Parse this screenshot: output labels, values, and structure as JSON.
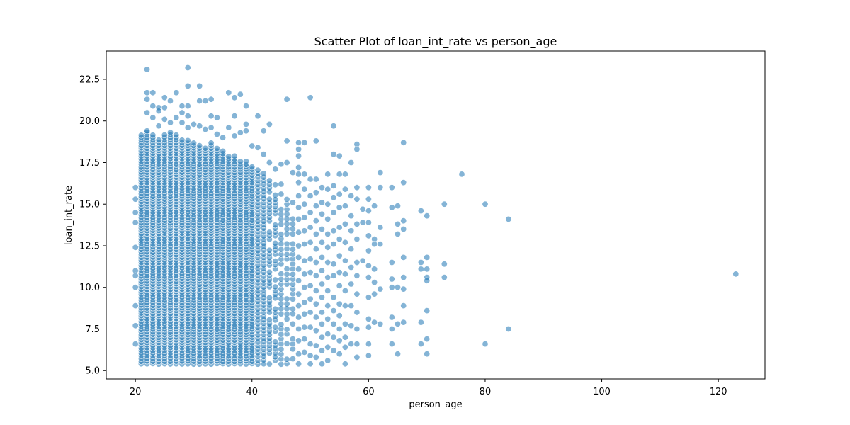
{
  "chart_data": {
    "type": "scatter",
    "title": "Scatter Plot of loan_int_rate vs person_age",
    "xlabel": "person_age",
    "ylabel": "loan_int_rate",
    "xlim": [
      15,
      128
    ],
    "ylim": [
      4.5,
      24.2
    ],
    "x_ticks": [
      20,
      40,
      60,
      80,
      100,
      120
    ],
    "x_tick_labels": [
      "20",
      "40",
      "60",
      "80",
      "100",
      "120"
    ],
    "y_ticks": [
      5.0,
      7.5,
      10.0,
      12.5,
      15.0,
      17.5,
      20.0,
      22.5
    ],
    "y_tick_labels": [
      "5.0",
      "7.5",
      "10.0",
      "12.5",
      "15.0",
      "17.5",
      "20.0",
      "22.5"
    ],
    "grid": false,
    "legend": "none",
    "marker_color": "#1f77b4",
    "marker_edge_color": "#ffffff",
    "marker_alpha": 0.55,
    "series": [
      {
        "values": [
          [
            20,
            16.0
          ],
          [
            20,
            15.3
          ],
          [
            20,
            14.5
          ],
          [
            20,
            13.9
          ],
          [
            20,
            12.4
          ],
          [
            20,
            11.0
          ],
          [
            20,
            10.7
          ],
          [
            20,
            10.0
          ],
          [
            20,
            8.9
          ],
          [
            20,
            7.7
          ],
          [
            20,
            6.6
          ],
          [
            22,
            23.1
          ],
          [
            22,
            21.7
          ],
          [
            22,
            21.3
          ],
          [
            22,
            20.5
          ],
          [
            22,
            19.4
          ],
          [
            23,
            21.7
          ],
          [
            23,
            20.9
          ],
          [
            23,
            20.2
          ],
          [
            24,
            20.8
          ],
          [
            24,
            20.6
          ],
          [
            24,
            19.7
          ],
          [
            25,
            21.4
          ],
          [
            25,
            20.8
          ],
          [
            25,
            20.1
          ],
          [
            26,
            21.2
          ],
          [
            26,
            19.9
          ],
          [
            27,
            21.7
          ],
          [
            27,
            20.2
          ],
          [
            28,
            20.9
          ],
          [
            28,
            20.5
          ],
          [
            28,
            19.9
          ],
          [
            29,
            23.2
          ],
          [
            29,
            22.1
          ],
          [
            29,
            20.9
          ],
          [
            29,
            20.3
          ],
          [
            29,
            19.6
          ],
          [
            30,
            19.8
          ],
          [
            31,
            22.1
          ],
          [
            31,
            21.2
          ],
          [
            31,
            19.7
          ],
          [
            32,
            21.2
          ],
          [
            32,
            19.5
          ],
          [
            33,
            21.3
          ],
          [
            33,
            20.3
          ],
          [
            33,
            19.6
          ],
          [
            34,
            20.2
          ],
          [
            34,
            19.2
          ],
          [
            35,
            19.0
          ],
          [
            36,
            21.7
          ],
          [
            36,
            19.6
          ],
          [
            37,
            21.4
          ],
          [
            37,
            20.3
          ],
          [
            37,
            19.1
          ],
          [
            38,
            21.6
          ],
          [
            38,
            19.3
          ],
          [
            39,
            20.9
          ],
          [
            39,
            19.8
          ],
          [
            39,
            19.4
          ],
          [
            40,
            18.5
          ],
          [
            41,
            20.3
          ],
          [
            41,
            18.4
          ],
          [
            42,
            19.4
          ],
          [
            42,
            18.0
          ],
          [
            43,
            19.8
          ],
          [
            43,
            17.5
          ],
          [
            44,
            17.1
          ],
          [
            45,
            17.4
          ],
          [
            45,
            16.2
          ],
          [
            46,
            21.3
          ],
          [
            46,
            18.8
          ],
          [
            46,
            17.5
          ],
          [
            47,
            16.9
          ],
          [
            47,
            15.1
          ],
          [
            48,
            18.7
          ],
          [
            48,
            18.3
          ],
          [
            48,
            17.9
          ],
          [
            48,
            17.2
          ],
          [
            48,
            16.8
          ],
          [
            48,
            16.3
          ],
          [
            48,
            15.5
          ],
          [
            48,
            14.8
          ],
          [
            48,
            14.1
          ],
          [
            48,
            13.3
          ],
          [
            48,
            12.5
          ],
          [
            48,
            11.8
          ],
          [
            48,
            11.1
          ],
          [
            48,
            10.4
          ],
          [
            48,
            9.6
          ],
          [
            48,
            8.9
          ],
          [
            48,
            8.2
          ],
          [
            48,
            7.5
          ],
          [
            48,
            6.8
          ],
          [
            48,
            6.0
          ],
          [
            48,
            5.4
          ],
          [
            49,
            18.7
          ],
          [
            49,
            16.8
          ],
          [
            49,
            15.9
          ],
          [
            49,
            15.0
          ],
          [
            49,
            14.2
          ],
          [
            49,
            13.4
          ],
          [
            49,
            12.6
          ],
          [
            49,
            11.6
          ],
          [
            49,
            10.8
          ],
          [
            49,
            10.0
          ],
          [
            49,
            9.1
          ],
          [
            49,
            8.4
          ],
          [
            49,
            7.6
          ],
          [
            49,
            6.9
          ],
          [
            49,
            6.1
          ],
          [
            50,
            21.4
          ],
          [
            50,
            16.5
          ],
          [
            50,
            15.5
          ],
          [
            50,
            14.5
          ],
          [
            50,
            13.6
          ],
          [
            50,
            12.7
          ],
          [
            50,
            11.7
          ],
          [
            50,
            10.9
          ],
          [
            50,
            10.1
          ],
          [
            50,
            9.3
          ],
          [
            50,
            8.5
          ],
          [
            50,
            7.6
          ],
          [
            50,
            6.6
          ],
          [
            50,
            5.9
          ],
          [
            50,
            5.4
          ],
          [
            51,
            18.8
          ],
          [
            51,
            16.5
          ],
          [
            51,
            15.7
          ],
          [
            51,
            14.9
          ],
          [
            51,
            14.0
          ],
          [
            51,
            13.2
          ],
          [
            51,
            12.3
          ],
          [
            51,
            11.5
          ],
          [
            51,
            10.7
          ],
          [
            51,
            9.8
          ],
          [
            51,
            9.0
          ],
          [
            51,
            8.2
          ],
          [
            51,
            7.4
          ],
          [
            51,
            6.5
          ],
          [
            51,
            5.8
          ],
          [
            52,
            16.0
          ],
          [
            52,
            15.1
          ],
          [
            52,
            14.4
          ],
          [
            52,
            13.5
          ],
          [
            52,
            12.7
          ],
          [
            52,
            11.8
          ],
          [
            52,
            11.0
          ],
          [
            52,
            10.2
          ],
          [
            52,
            9.4
          ],
          [
            52,
            8.5
          ],
          [
            52,
            7.8
          ],
          [
            52,
            7.0
          ],
          [
            52,
            6.2
          ],
          [
            52,
            5.4
          ],
          [
            53,
            16.8
          ],
          [
            53,
            15.9
          ],
          [
            53,
            15.0
          ],
          [
            53,
            14.1
          ],
          [
            53,
            13.2
          ],
          [
            53,
            12.4
          ],
          [
            53,
            11.5
          ],
          [
            53,
            10.6
          ],
          [
            53,
            9.8
          ],
          [
            53,
            8.9
          ],
          [
            53,
            8.1
          ],
          [
            53,
            7.2
          ],
          [
            53,
            6.4
          ],
          [
            53,
            5.6
          ],
          [
            54,
            19.7
          ],
          [
            54,
            18.0
          ],
          [
            54,
            16.1
          ],
          [
            54,
            15.4
          ],
          [
            54,
            14.5
          ],
          [
            54,
            13.4
          ],
          [
            54,
            12.6
          ],
          [
            54,
            11.4
          ],
          [
            54,
            10.7
          ],
          [
            54,
            9.4
          ],
          [
            54,
            8.6
          ],
          [
            54,
            7.8
          ],
          [
            54,
            7.0
          ],
          [
            54,
            6.2
          ],
          [
            55,
            17.9
          ],
          [
            55,
            16.8
          ],
          [
            55,
            15.6
          ],
          [
            55,
            14.8
          ],
          [
            55,
            13.6
          ],
          [
            55,
            12.9
          ],
          [
            55,
            11.9
          ],
          [
            55,
            10.9
          ],
          [
            55,
            10.1
          ],
          [
            55,
            9.0
          ],
          [
            55,
            8.3
          ],
          [
            55,
            7.5
          ],
          [
            55,
            6.8
          ],
          [
            55,
            6.0
          ],
          [
            56,
            16.8
          ],
          [
            56,
            15.9
          ],
          [
            56,
            14.9
          ],
          [
            56,
            13.8
          ],
          [
            56,
            12.7
          ],
          [
            56,
            11.6
          ],
          [
            56,
            10.8
          ],
          [
            56,
            9.8
          ],
          [
            56,
            8.9
          ],
          [
            56,
            7.8
          ],
          [
            56,
            7.0
          ],
          [
            56,
            6.4
          ],
          [
            56,
            5.4
          ],
          [
            57,
            17.5
          ],
          [
            57,
            15.5
          ],
          [
            57,
            14.3
          ],
          [
            57,
            13.4
          ],
          [
            57,
            12.3
          ],
          [
            57,
            11.2
          ],
          [
            57,
            10.2
          ],
          [
            57,
            8.9
          ],
          [
            57,
            7.7
          ],
          [
            57,
            6.6
          ],
          [
            58,
            18.6
          ],
          [
            58,
            18.3
          ],
          [
            58,
            16.0
          ],
          [
            58,
            15.3
          ],
          [
            58,
            13.8
          ],
          [
            58,
            12.9
          ],
          [
            58,
            11.5
          ],
          [
            58,
            10.7
          ],
          [
            58,
            9.6
          ],
          [
            58,
            8.5
          ],
          [
            58,
            7.5
          ],
          [
            58,
            6.6
          ],
          [
            58,
            5.8
          ],
          [
            59,
            14.7
          ],
          [
            59,
            13.9
          ],
          [
            59,
            11.6
          ],
          [
            60,
            16.0
          ],
          [
            60,
            15.3
          ],
          [
            60,
            14.6
          ],
          [
            60,
            13.9
          ],
          [
            60,
            13.1
          ],
          [
            60,
            12.2
          ],
          [
            60,
            11.3
          ],
          [
            60,
            10.6
          ],
          [
            60,
            9.4
          ],
          [
            60,
            8.1
          ],
          [
            60,
            7.6
          ],
          [
            60,
            6.6
          ],
          [
            60,
            5.9
          ],
          [
            61,
            14.9
          ],
          [
            61,
            12.9
          ],
          [
            61,
            12.6
          ],
          [
            61,
            11.1
          ],
          [
            61,
            10.3
          ],
          [
            61,
            9.6
          ],
          [
            61,
            7.9
          ],
          [
            62,
            16.9
          ],
          [
            62,
            16.0
          ],
          [
            62,
            13.6
          ],
          [
            62,
            12.6
          ],
          [
            62,
            9.9
          ],
          [
            62,
            7.8
          ],
          [
            64,
            16.0
          ],
          [
            64,
            14.8
          ],
          [
            64,
            11.5
          ],
          [
            64,
            10.5
          ],
          [
            64,
            10.0
          ],
          [
            64,
            8.2
          ],
          [
            64,
            7.5
          ],
          [
            64,
            6.6
          ],
          [
            65,
            14.9
          ],
          [
            65,
            13.8
          ],
          [
            65,
            13.2
          ],
          [
            65,
            10.0
          ],
          [
            65,
            7.8
          ],
          [
            65,
            6.0
          ],
          [
            66,
            18.7
          ],
          [
            66,
            16.3
          ],
          [
            66,
            14.0
          ],
          [
            66,
            13.5
          ],
          [
            66,
            11.8
          ],
          [
            66,
            10.6
          ],
          [
            66,
            9.9
          ],
          [
            66,
            8.9
          ],
          [
            66,
            7.9
          ],
          [
            69,
            14.6
          ],
          [
            69,
            11.5
          ],
          [
            69,
            11.1
          ],
          [
            69,
            7.9
          ],
          [
            69,
            6.6
          ],
          [
            70,
            14.3
          ],
          [
            70,
            11.8
          ],
          [
            70,
            11.1
          ],
          [
            70,
            10.6
          ],
          [
            70,
            10.4
          ],
          [
            70,
            8.6
          ],
          [
            70,
            6.9
          ],
          [
            70,
            6.0
          ],
          [
            73,
            15.0
          ],
          [
            73,
            11.4
          ],
          [
            73,
            10.6
          ],
          [
            76,
            16.8
          ],
          [
            80,
            15.0
          ],
          [
            80,
            6.6
          ],
          [
            84,
            14.1
          ],
          [
            84,
            7.5
          ],
          [
            123,
            10.8
          ]
        ]
      }
    ]
  }
}
